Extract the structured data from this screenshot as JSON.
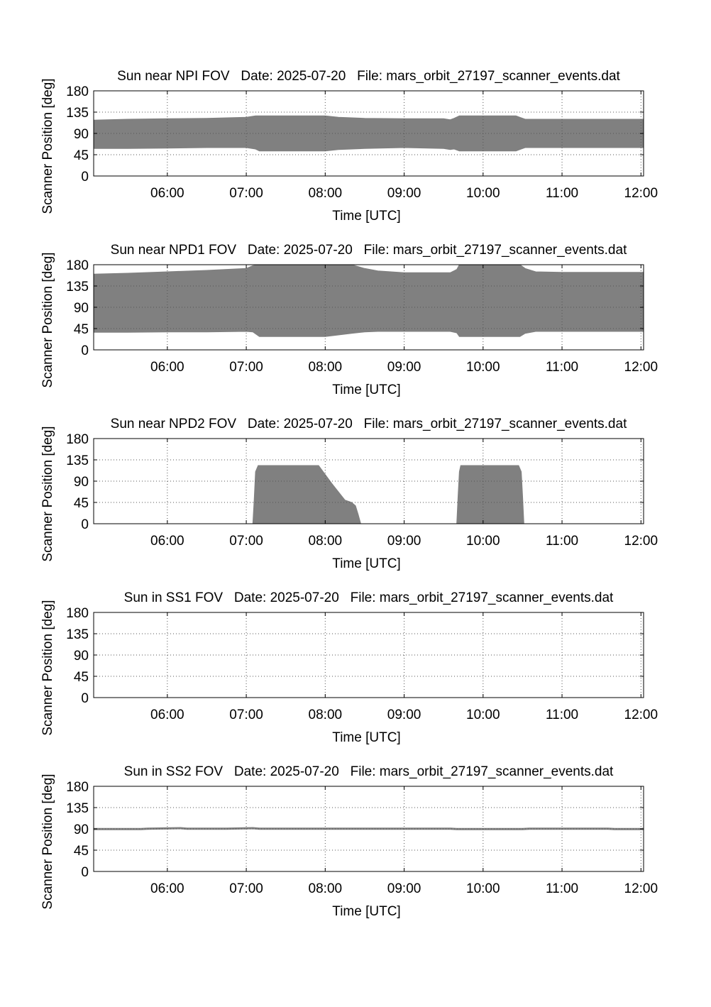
{
  "chart_data": [
    {
      "type": "area",
      "title": "Sun near NPI FOV   Date: 2025-07-20   File: mars_orbit_27197_scanner_events.dat",
      "xlabel": "Time [UTC]",
      "ylabel": "Scanner Position [deg]",
      "xlim": [
        "05:04",
        "12:02"
      ],
      "ylim": [
        0,
        180
      ],
      "xticks": [
        "06:00",
        "07:00",
        "08:00",
        "09:00",
        "10:00",
        "11:00",
        "12:00"
      ],
      "yticks": [
        0,
        45,
        90,
        135,
        180
      ],
      "grid": true,
      "x": [
        "05:04",
        "05:30",
        "06:00",
        "06:30",
        "07:00",
        "07:07",
        "07:10",
        "07:30",
        "08:00",
        "08:10",
        "08:30",
        "09:00",
        "09:30",
        "09:35",
        "09:38",
        "09:42",
        "10:00",
        "10:25",
        "10:28",
        "10:32",
        "11:00",
        "11:30",
        "12:02"
      ],
      "upper": [
        118,
        120,
        121,
        122,
        124,
        127,
        127,
        127,
        127,
        124,
        122,
        121,
        121,
        119,
        122,
        127,
        127,
        127,
        124,
        120,
        120,
        120,
        120
      ],
      "lower": [
        58,
        58,
        59,
        60,
        60,
        57,
        53,
        53,
        53,
        56,
        58,
        60,
        58,
        56,
        57,
        53,
        53,
        53,
        56,
        60,
        60,
        60,
        60
      ]
    },
    {
      "type": "area",
      "title": "Sun near NPD1 FOV   Date: 2025-07-20   File: mars_orbit_27197_scanner_events.dat",
      "xlabel": "Time [UTC]",
      "ylabel": "Scanner Position [deg]",
      "xlim": [
        "05:04",
        "12:02"
      ],
      "ylim": [
        0,
        180
      ],
      "xticks": [
        "06:00",
        "07:00",
        "08:00",
        "09:00",
        "10:00",
        "11:00",
        "12:00"
      ],
      "yticks": [
        0,
        45,
        90,
        135,
        180
      ],
      "grid": true,
      "x": [
        "05:04",
        "05:30",
        "06:00",
        "06:30",
        "07:00",
        "07:05",
        "07:10",
        "08:00",
        "08:20",
        "08:30",
        "08:40",
        "09:00",
        "09:35",
        "09:40",
        "09:42",
        "10:00",
        "10:28",
        "10:32",
        "10:40",
        "11:00",
        "11:30",
        "12:02"
      ],
      "upper": [
        160,
        162,
        165,
        168,
        172,
        178,
        180,
        180,
        180,
        172,
        167,
        163,
        163,
        170,
        180,
        180,
        180,
        172,
        165,
        164,
        164,
        164
      ],
      "lower": [
        37,
        37,
        38,
        38,
        39,
        38,
        28,
        28,
        35,
        38,
        39,
        39,
        39,
        36,
        28,
        28,
        28,
        35,
        39,
        39,
        39,
        39
      ]
    },
    {
      "type": "area",
      "title": "Sun near NPD2 FOV   Date: 2025-07-20   File: mars_orbit_27197_scanner_events.dat",
      "xlabel": "Time [UTC]",
      "ylabel": "Scanner Position [deg]",
      "xlim": [
        "05:04",
        "12:02"
      ],
      "ylim": [
        0,
        180
      ],
      "xticks": [
        "06:00",
        "07:00",
        "08:00",
        "09:00",
        "10:00",
        "11:00",
        "12:00"
      ],
      "yticks": [
        0,
        45,
        90,
        135,
        180
      ],
      "grid": true,
      "segments": [
        {
          "x": [
            "07:05",
            "07:06",
            "07:07",
            "07:09",
            "07:55",
            "08:05",
            "08:15",
            "08:20",
            "08:23",
            "08:25",
            "08:27"
          ],
          "upper": [
            0,
            50,
            110,
            123,
            123,
            85,
            50,
            45,
            38,
            20,
            0
          ],
          "lower": [
            0,
            0,
            0,
            0,
            0,
            0,
            0,
            0,
            0,
            0,
            0
          ]
        },
        {
          "x": [
            "09:40",
            "09:41",
            "09:42",
            "09:43",
            "10:27",
            "10:29",
            "10:30",
            "10:31"
          ],
          "upper": [
            0,
            60,
            110,
            123,
            123,
            110,
            60,
            0
          ],
          "lower": [
            0,
            0,
            0,
            0,
            0,
            0,
            0,
            0
          ]
        }
      ]
    },
    {
      "type": "area",
      "title": "Sun in SS1 FOV   Date: 2025-07-20   File: mars_orbit_27197_scanner_events.dat",
      "xlabel": "Time [UTC]",
      "ylabel": "Scanner Position [deg]",
      "xlim": [
        "05:04",
        "12:02"
      ],
      "ylim": [
        0,
        180
      ],
      "xticks": [
        "06:00",
        "07:00",
        "08:00",
        "09:00",
        "10:00",
        "11:00",
        "12:00"
      ],
      "yticks": [
        0,
        45,
        90,
        135,
        180
      ],
      "grid": true,
      "x": [],
      "upper": [],
      "lower": []
    },
    {
      "type": "area",
      "title": "Sun in SS2 FOV   Date: 2025-07-20   File: mars_orbit_27197_scanner_events.dat",
      "xlabel": "Time [UTC]",
      "ylabel": "Scanner Position [deg]",
      "xlim": [
        "05:04",
        "12:02"
      ],
      "ylim": [
        0,
        180
      ],
      "xticks": [
        "06:00",
        "07:00",
        "08:00",
        "09:00",
        "10:00",
        "11:00",
        "12:00"
      ],
      "yticks": [
        0,
        45,
        90,
        135,
        180
      ],
      "grid": true,
      "x": [
        "05:04",
        "05:40",
        "05:45",
        "06:10",
        "06:15",
        "06:45",
        "07:05",
        "07:10",
        "09:35",
        "09:40",
        "10:30",
        "10:35",
        "11:35",
        "11:40",
        "12:02"
      ],
      "upper": [
        91,
        91,
        92,
        93,
        92,
        92,
        93,
        92,
        92,
        91,
        91,
        92,
        92,
        91,
        91
      ],
      "lower": [
        88,
        88,
        89,
        90,
        89,
        89,
        90,
        89,
        89,
        88,
        88,
        89,
        89,
        88,
        88
      ]
    }
  ],
  "colors": {
    "fill": "#808080",
    "frame": "#000000",
    "grid": "#555555",
    "background": "#ffffff"
  }
}
